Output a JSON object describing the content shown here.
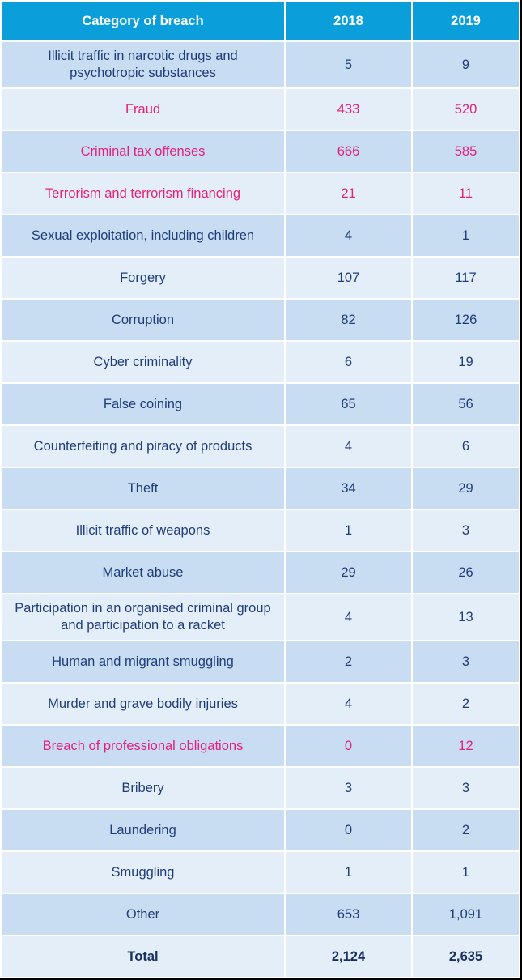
{
  "table": {
    "headers": [
      "Category of breach",
      "2018",
      "2019"
    ],
    "highlight_color": "#e4217b",
    "header_color": "#0a9fdb",
    "rows": [
      {
        "category": "Illicit traffic in narcotic drugs and psychotropic substances",
        "y2018": "5",
        "y2019": "9",
        "highlight": false
      },
      {
        "category": "Fraud",
        "y2018": "433",
        "y2019": "520",
        "highlight": true
      },
      {
        "category": "Criminal tax offenses",
        "y2018": "666",
        "y2019": "585",
        "highlight": true
      },
      {
        "category": "Terrorism and terrorism financing",
        "y2018": "21",
        "y2019": "11",
        "highlight": true
      },
      {
        "category": "Sexual exploitation, including children",
        "y2018": "4",
        "y2019": "1",
        "highlight": false
      },
      {
        "category": "Forgery",
        "y2018": "107",
        "y2019": "117",
        "highlight": false
      },
      {
        "category": "Corruption",
        "y2018": "82",
        "y2019": "126",
        "highlight": false
      },
      {
        "category": "Cyber criminality",
        "y2018": "6",
        "y2019": "19",
        "highlight": false
      },
      {
        "category": "False coining",
        "y2018": "65",
        "y2019": "56",
        "highlight": false
      },
      {
        "category": "Counterfeiting and piracy of products",
        "y2018": "4",
        "y2019": "6",
        "highlight": false
      },
      {
        "category": "Theft",
        "y2018": "34",
        "y2019": "29",
        "highlight": false
      },
      {
        "category": "Illicit traffic of weapons",
        "y2018": "1",
        "y2019": "3",
        "highlight": false
      },
      {
        "category": "Market abuse",
        "y2018": "29",
        "y2019": "26",
        "highlight": false
      },
      {
        "category": "Participation in an organised criminal group and participation to a racket",
        "y2018": "4",
        "y2019": "13",
        "highlight": false
      },
      {
        "category": "Human and migrant smuggling",
        "y2018": "2",
        "y2019": "3",
        "highlight": false
      },
      {
        "category": "Murder and grave bodily injuries",
        "y2018": "4",
        "y2019": "2",
        "highlight": false
      },
      {
        "category": "Breach of professional obligations",
        "y2018": "0",
        "y2019": "12",
        "highlight": true
      },
      {
        "category": "Bribery",
        "y2018": "3",
        "y2019": "3",
        "highlight": false
      },
      {
        "category": "Laundering",
        "y2018": "0",
        "y2019": "2",
        "highlight": false
      },
      {
        "category": "Smuggling",
        "y2018": "1",
        "y2019": "1",
        "highlight": false
      },
      {
        "category": "Other",
        "y2018": "653",
        "y2019": "1,091",
        "highlight": false
      }
    ],
    "total": {
      "category": "Total",
      "y2018": "2,124",
      "y2019": "2,635"
    }
  }
}
